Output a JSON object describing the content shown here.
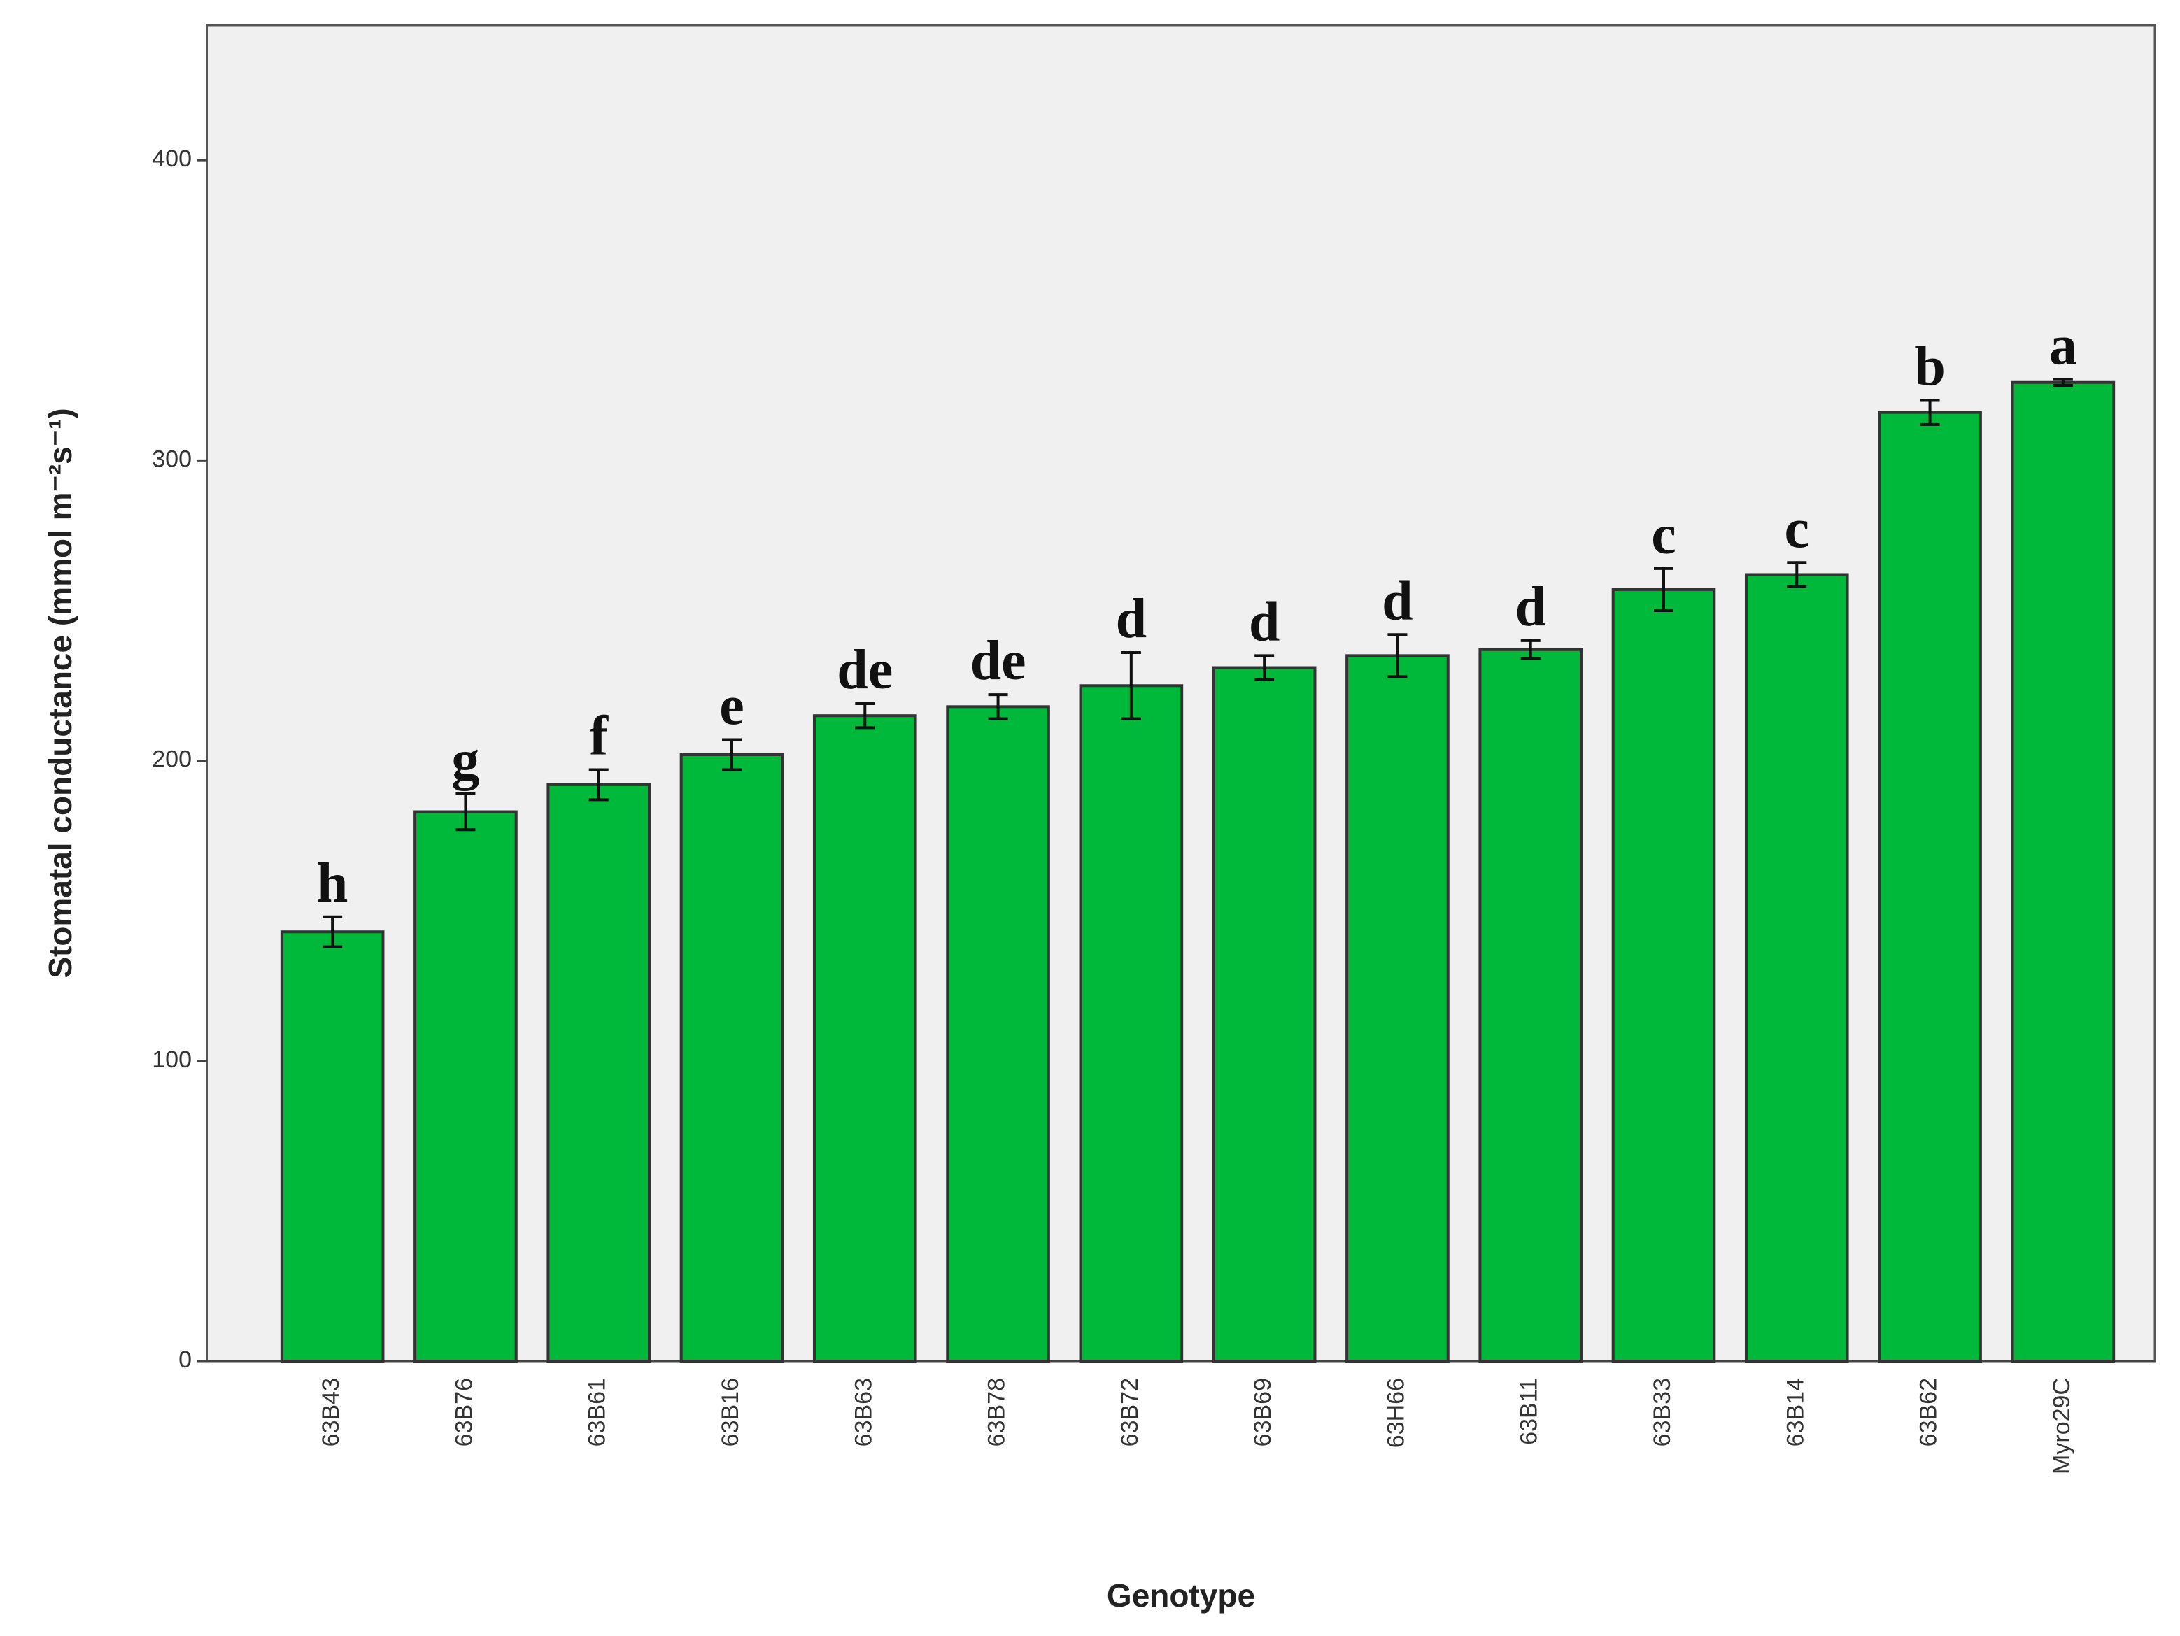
{
  "chart_data": {
    "type": "bar",
    "x_label": "Genotype",
    "y_label": "Stomatal conductance (mmol m⁻²s⁻¹)",
    "categories": [
      "63B43",
      "63B76",
      "63B61",
      "63B16",
      "63B63",
      "63B78",
      "63B72",
      "63B69",
      "63H66",
      "63B11",
      "63B33",
      "63B14",
      "63B62",
      "Myro29C"
    ],
    "values": [
      143,
      183,
      192,
      202,
      215,
      218,
      225,
      231,
      235,
      237,
      257,
      262,
      316,
      326
    ],
    "errors": [
      5,
      6,
      5,
      5,
      4,
      4,
      11,
      4,
      7,
      3,
      7,
      4,
      4,
      1
    ],
    "letters": [
      "h",
      "g",
      "f",
      "e",
      "de",
      "de",
      "d",
      "d",
      "d",
      "d",
      "c",
      "c",
      "b",
      "a"
    ],
    "color": "#00b83a",
    "ylim": [
      0,
      445
    ],
    "yticks": [
      0,
      100,
      200,
      300,
      400
    ],
    "grid": false
  }
}
